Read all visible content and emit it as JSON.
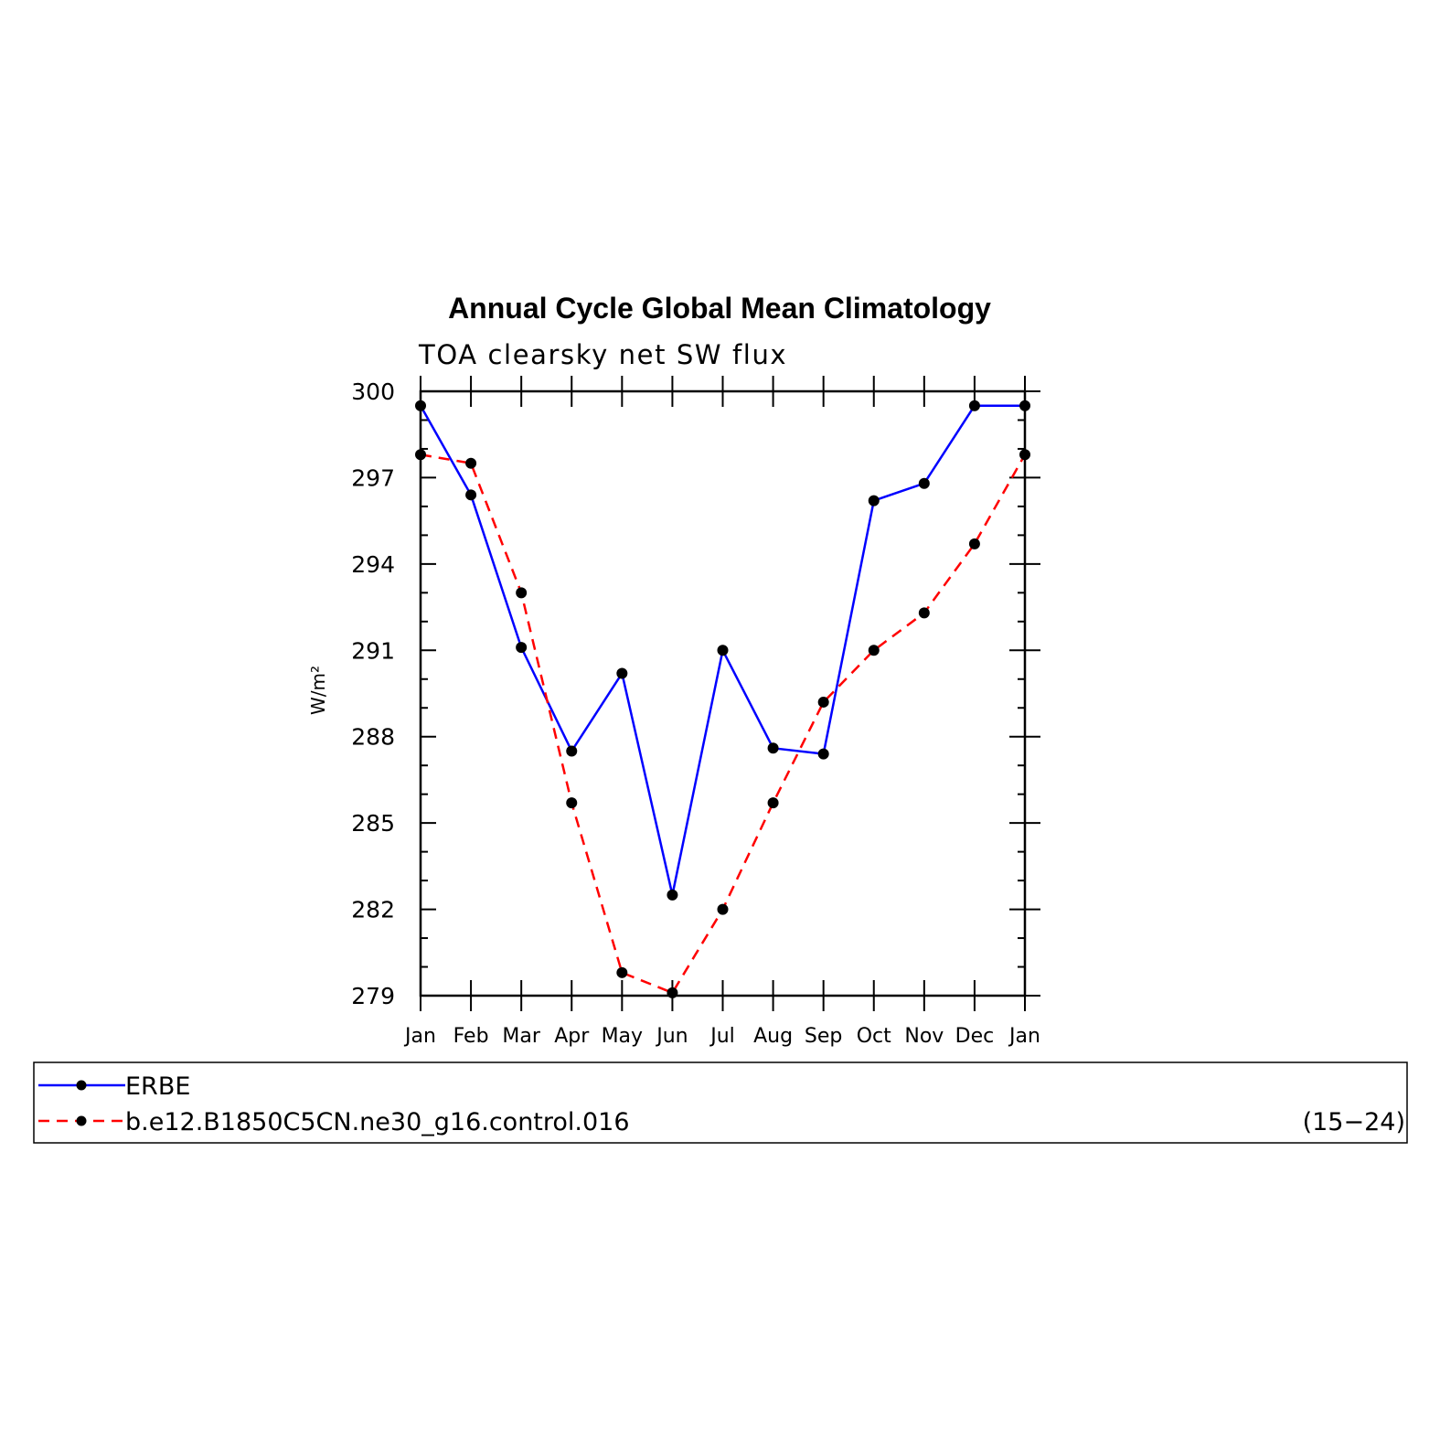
{
  "chart_data": {
    "type": "line",
    "title": "Annual Cycle Global Mean Climatology",
    "subtitle": "TOA clearsky net SW flux",
    "xlabel": "",
    "ylabel": "W/m²",
    "categories": [
      "Jan",
      "Feb",
      "Mar",
      "Apr",
      "May",
      "Jun",
      "Jul",
      "Aug",
      "Sep",
      "Oct",
      "Nov",
      "Dec",
      "Jan"
    ],
    "ylim": [
      279,
      300
    ],
    "yticks": [
      "279",
      "282",
      "285",
      "288",
      "291",
      "294",
      "297",
      "300"
    ],
    "series": [
      {
        "name": "ERBE",
        "color": "#0000ff",
        "style": "solid",
        "marker": "filled-circle",
        "values": [
          299.5,
          296.4,
          291.1,
          287.5,
          290.2,
          282.5,
          291.0,
          287.6,
          287.4,
          296.2,
          296.8,
          299.5,
          299.5
        ]
      },
      {
        "name": "b.e12.B1850C5CN.ne30_g16.control.016",
        "color": "#ff0000",
        "style": "dashed",
        "marker": "filled-circle",
        "values": [
          297.8,
          297.5,
          293.0,
          285.7,
          279.8,
          279.1,
          282.0,
          285.7,
          289.2,
          291.0,
          292.3,
          294.7,
          297.8
        ]
      }
    ],
    "grid": false,
    "legend": {
      "placement": "bottom",
      "annotation": "(15−24)"
    }
  }
}
